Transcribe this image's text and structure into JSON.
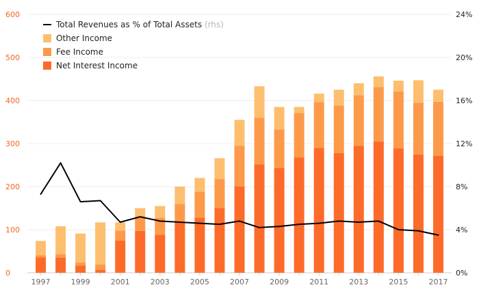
{
  "chart_data": {
    "type": "bar",
    "stacked": true,
    "categories": [
      "1997",
      "1998",
      "1999",
      "2000",
      "2001",
      "2002",
      "2003",
      "2004",
      "2005",
      "2006",
      "2007",
      "2008",
      "2009",
      "2010",
      "2011",
      "2012",
      "2013",
      "2014",
      "2015",
      "2016",
      "2017"
    ],
    "x_tick_labels": [
      "1997",
      "",
      "1999",
      "",
      "2001",
      "",
      "2003",
      "",
      "2005",
      "",
      "2007",
      "",
      "2009",
      "",
      "2011",
      "",
      "2013",
      "",
      "2015",
      "",
      "2017"
    ],
    "series": [
      {
        "name": "Net Interest Income",
        "color": "#fd6b2a",
        "values": [
          36,
          35,
          17,
          7,
          75,
          97,
          88,
          117,
          128,
          150,
          200,
          252,
          243,
          268,
          290,
          278,
          295,
          305,
          289,
          275,
          272
        ]
      },
      {
        "name": "Fee Income",
        "color": "#fd9a4a",
        "values": [
          5,
          8,
          7,
          12,
          23,
          30,
          40,
          43,
          60,
          68,
          95,
          108,
          90,
          103,
          106,
          110,
          117,
          126,
          132,
          120,
          125
        ]
      },
      {
        "name": "Other Income",
        "color": "#fdbf6f",
        "values": [
          33,
          65,
          67,
          98,
          19,
          23,
          27,
          40,
          32,
          48,
          60,
          73,
          52,
          14,
          20,
          37,
          28,
          25,
          25,
          52,
          28
        ]
      }
    ],
    "line_series": {
      "name": "Total Revenues as % of Total Assets",
      "axis": "right",
      "color": "#000000",
      "values": [
        7.3,
        10.2,
        6.6,
        6.7,
        4.7,
        5.2,
        4.8,
        4.7,
        4.6,
        4.5,
        4.8,
        4.2,
        4.3,
        4.5,
        4.6,
        4.8,
        4.7,
        4.8,
        4.0,
        3.9,
        3.5
      ]
    },
    "legend": [
      {
        "label": "Total Revenues as % of Total Assets",
        "note": "(rhs)",
        "kind": "line"
      },
      {
        "label": "Other Income",
        "kind": "box",
        "color": "#fdbf6f"
      },
      {
        "label": "Fee Income",
        "kind": "box",
        "color": "#fd9a4a"
      },
      {
        "label": "Net Interest Income",
        "kind": "box",
        "color": "#fd6b2a"
      }
    ],
    "legend_position": "top-left",
    "y_left": {
      "min": 0,
      "max": 600,
      "ticks": [
        "0",
        "100",
        "200",
        "300",
        "400",
        "500",
        "600"
      ],
      "color": "#f26522"
    },
    "y_right": {
      "min": 0,
      "max": 24,
      "ticks": [
        "0%",
        "4%",
        "8%",
        "12%",
        "16%",
        "20%",
        "24%"
      ],
      "color": "#222222"
    },
    "grid": true
  }
}
